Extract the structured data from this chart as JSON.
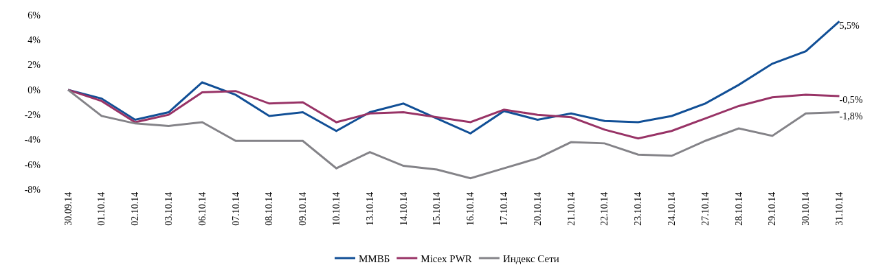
{
  "chart_data": {
    "type": "line",
    "categories": [
      "30.09.14",
      "01.10.14",
      "02.10.14",
      "03.10.14",
      "06.10.14",
      "07.10.14",
      "08.10.14",
      "09.10.14",
      "10.10.14",
      "13.10.14",
      "14.10.14",
      "15.10.14",
      "16.10.14",
      "17.10.14",
      "20.10.14",
      "21.10.14",
      "22.10.14",
      "23.10.14",
      "24.10.14",
      "27.10.14",
      "28.10.14",
      "29.10.14",
      "30.10.14",
      "31.10.14"
    ],
    "series": [
      {
        "name": "ММВБ",
        "color": "#114f96",
        "values": [
          0,
          -0.7,
          -2.4,
          -1.8,
          0.6,
          -0.4,
          -2.1,
          -1.8,
          -3.3,
          -1.8,
          -1.1,
          -2.3,
          -3.5,
          -1.7,
          -2.4,
          -1.9,
          -2.5,
          -2.6,
          -2.1,
          -1.1,
          0.4,
          2.1,
          3.1,
          5.5
        ],
        "value_labels": [
          null,
          null,
          null,
          null,
          null,
          null,
          null,
          null,
          null,
          null,
          null,
          null,
          null,
          null,
          null,
          null,
          null,
          null,
          null,
          null,
          null,
          null,
          null,
          "5,5%"
        ]
      },
      {
        "name": "Micex PWR",
        "color": "#983366",
        "values": [
          0,
          -0.9,
          -2.6,
          -2.0,
          -0.2,
          -0.1,
          -1.1,
          -1.0,
          -2.6,
          -1.9,
          -1.8,
          -2.2,
          -2.6,
          -1.6,
          -2.0,
          -2.2,
          -3.2,
          -3.9,
          -3.3,
          -2.3,
          -1.3,
          -0.6,
          -0.4,
          -0.5
        ],
        "value_labels": [
          null,
          null,
          null,
          null,
          null,
          null,
          null,
          null,
          null,
          null,
          null,
          null,
          null,
          null,
          null,
          null,
          null,
          null,
          null,
          null,
          null,
          null,
          null,
          "-0,5%"
        ]
      },
      {
        "name": "Индекс Сети",
        "color": "#848388",
        "values": [
          0,
          -2.1,
          -2.7,
          -2.9,
          -2.6,
          -4.1,
          -4.1,
          -4.1,
          -6.3,
          -5.0,
          -6.1,
          -6.4,
          -7.1,
          -6.3,
          -5.5,
          -4.2,
          -4.3,
          -5.2,
          -5.3,
          -4.1,
          -3.1,
          -3.7,
          -1.9,
          -1.8
        ],
        "value_labels": [
          null,
          null,
          null,
          null,
          null,
          null,
          null,
          null,
          null,
          null,
          null,
          null,
          null,
          null,
          null,
          null,
          null,
          null,
          null,
          null,
          null,
          null,
          null,
          "-1,8%"
        ]
      }
    ],
    "ylim": [
      -8,
      6
    ],
    "yticks": [
      {
        "value": -8,
        "label": "-8%"
      },
      {
        "value": -6,
        "label": "-6%"
      },
      {
        "value": -4,
        "label": "-4%"
      },
      {
        "value": -2,
        "label": "-2%"
      },
      {
        "value": 0,
        "label": "0%"
      },
      {
        "value": 2,
        "label": "2%"
      },
      {
        "value": 4,
        "label": "4%"
      },
      {
        "value": 6,
        "label": "6%"
      }
    ],
    "legend": "bottom",
    "marker": "none",
    "line_style": "solid"
  }
}
